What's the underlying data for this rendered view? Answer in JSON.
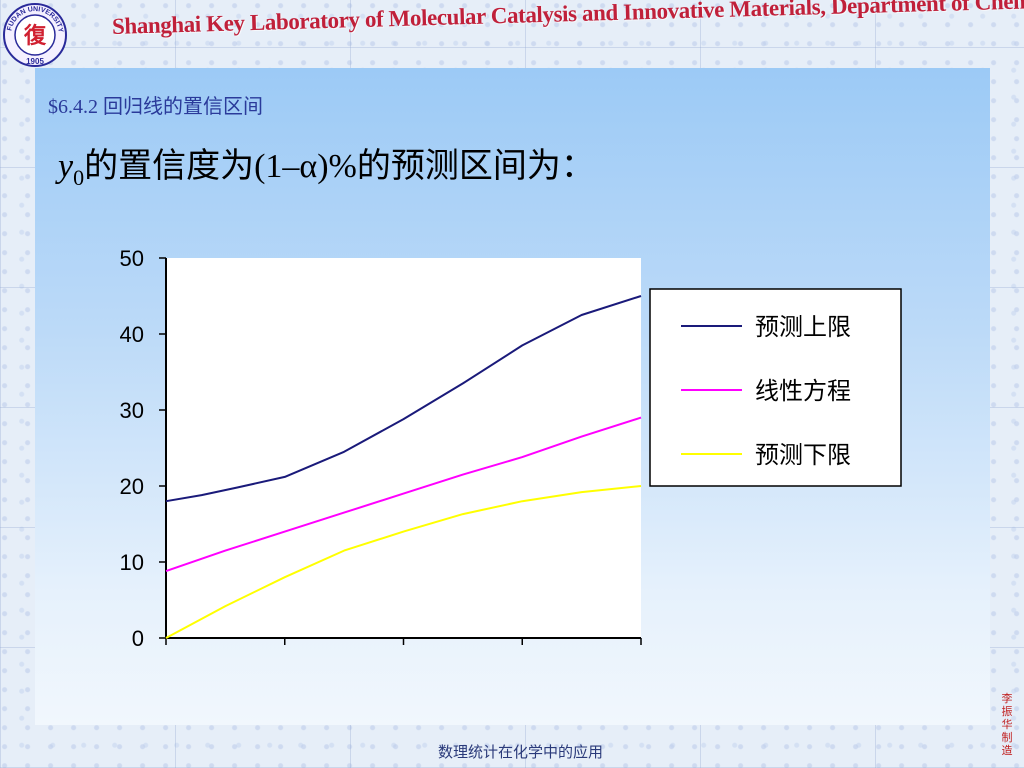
{
  "header": {
    "title": "Shanghai Key Laboratory of Molecular Catalysis and Innovative Materials, Department of Chemistry",
    "logo_text_top": "FUDAN UNIVERSITY",
    "logo_year": "1905",
    "logo_glyph": "復"
  },
  "section_label": "$6.4.2 回归线的置信区间",
  "heading": {
    "var": "y",
    "sub": "0",
    "rest": "的置信度为(1–α)%的预测区间为："
  },
  "chart_data": {
    "type": "line",
    "ylim": [
      0,
      50
    ],
    "yticks": [
      "0",
      "10",
      "20",
      "30",
      "40",
      "50"
    ],
    "xlim": [
      0,
      20
    ],
    "xticks": [
      0,
      5,
      10,
      15,
      20
    ],
    "grid": false,
    "legend_position": "right",
    "series": [
      {
        "name": "预测上限",
        "color": "#1a1a7a",
        "x": [
          0,
          1.5,
          3,
          5,
          7.5,
          10,
          12.5,
          15,
          17.5,
          20
        ],
        "y": [
          18,
          18.8,
          19.8,
          21.2,
          24.5,
          28.8,
          33.5,
          38.5,
          42.5,
          45
        ]
      },
      {
        "name": "线性方程",
        "color": "#ff00ff",
        "x": [
          0,
          2.5,
          5,
          7.5,
          10,
          12.5,
          15,
          17.5,
          20
        ],
        "y": [
          8.8,
          11.5,
          14,
          16.5,
          19,
          21.5,
          23.8,
          26.5,
          29
        ]
      },
      {
        "name": "预测下限",
        "color": "#ffff00",
        "x": [
          0,
          2.5,
          5,
          7.5,
          10,
          12.5,
          15,
          17.5,
          20
        ],
        "y": [
          0,
          4.2,
          8,
          11.5,
          14,
          16.3,
          18,
          19.2,
          20
        ]
      }
    ]
  },
  "footer": "数理统计在化学中的应用",
  "author": "李振华制造"
}
